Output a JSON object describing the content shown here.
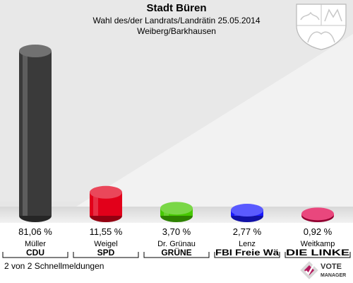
{
  "header": {
    "title": "Stadt Büren",
    "subtitle": "Wahl des/der Landrats/Landrätin 25.05.2014",
    "district": "Weiberg/Barkhausen"
  },
  "footer": {
    "status": "2 von 2 Schnellmeldungen"
  },
  "crest": {
    "icon": "nrw-coat-of-arms-icon"
  },
  "brand": {
    "icon": "votemanager-logo-icon",
    "line1": "VOTE",
    "line2": "MANAGER"
  },
  "chart_data": {
    "type": "bar",
    "categories": [
      "Müller",
      "Weigel",
      "Dr. Grünau",
      "Lenz",
      "Weitkamp"
    ],
    "parties": [
      "CDU",
      "SPD",
      "GRÜNE",
      "FBI Freie Wä",
      "DIE LINKE"
    ],
    "values": [
      81.06,
      11.55,
      3.7,
      2.77,
      0.92
    ],
    "value_labels": [
      "81,06 %",
      "11,55 %",
      "3,70 %",
      "2,77 %",
      "0,92 %"
    ],
    "colors": [
      "#3a3a3a",
      "#e2001a",
      "#46c800",
      "#1a1aff",
      "#e0004a"
    ],
    "ylim": [
      0,
      100
    ],
    "legend": "none",
    "grid": false
  }
}
